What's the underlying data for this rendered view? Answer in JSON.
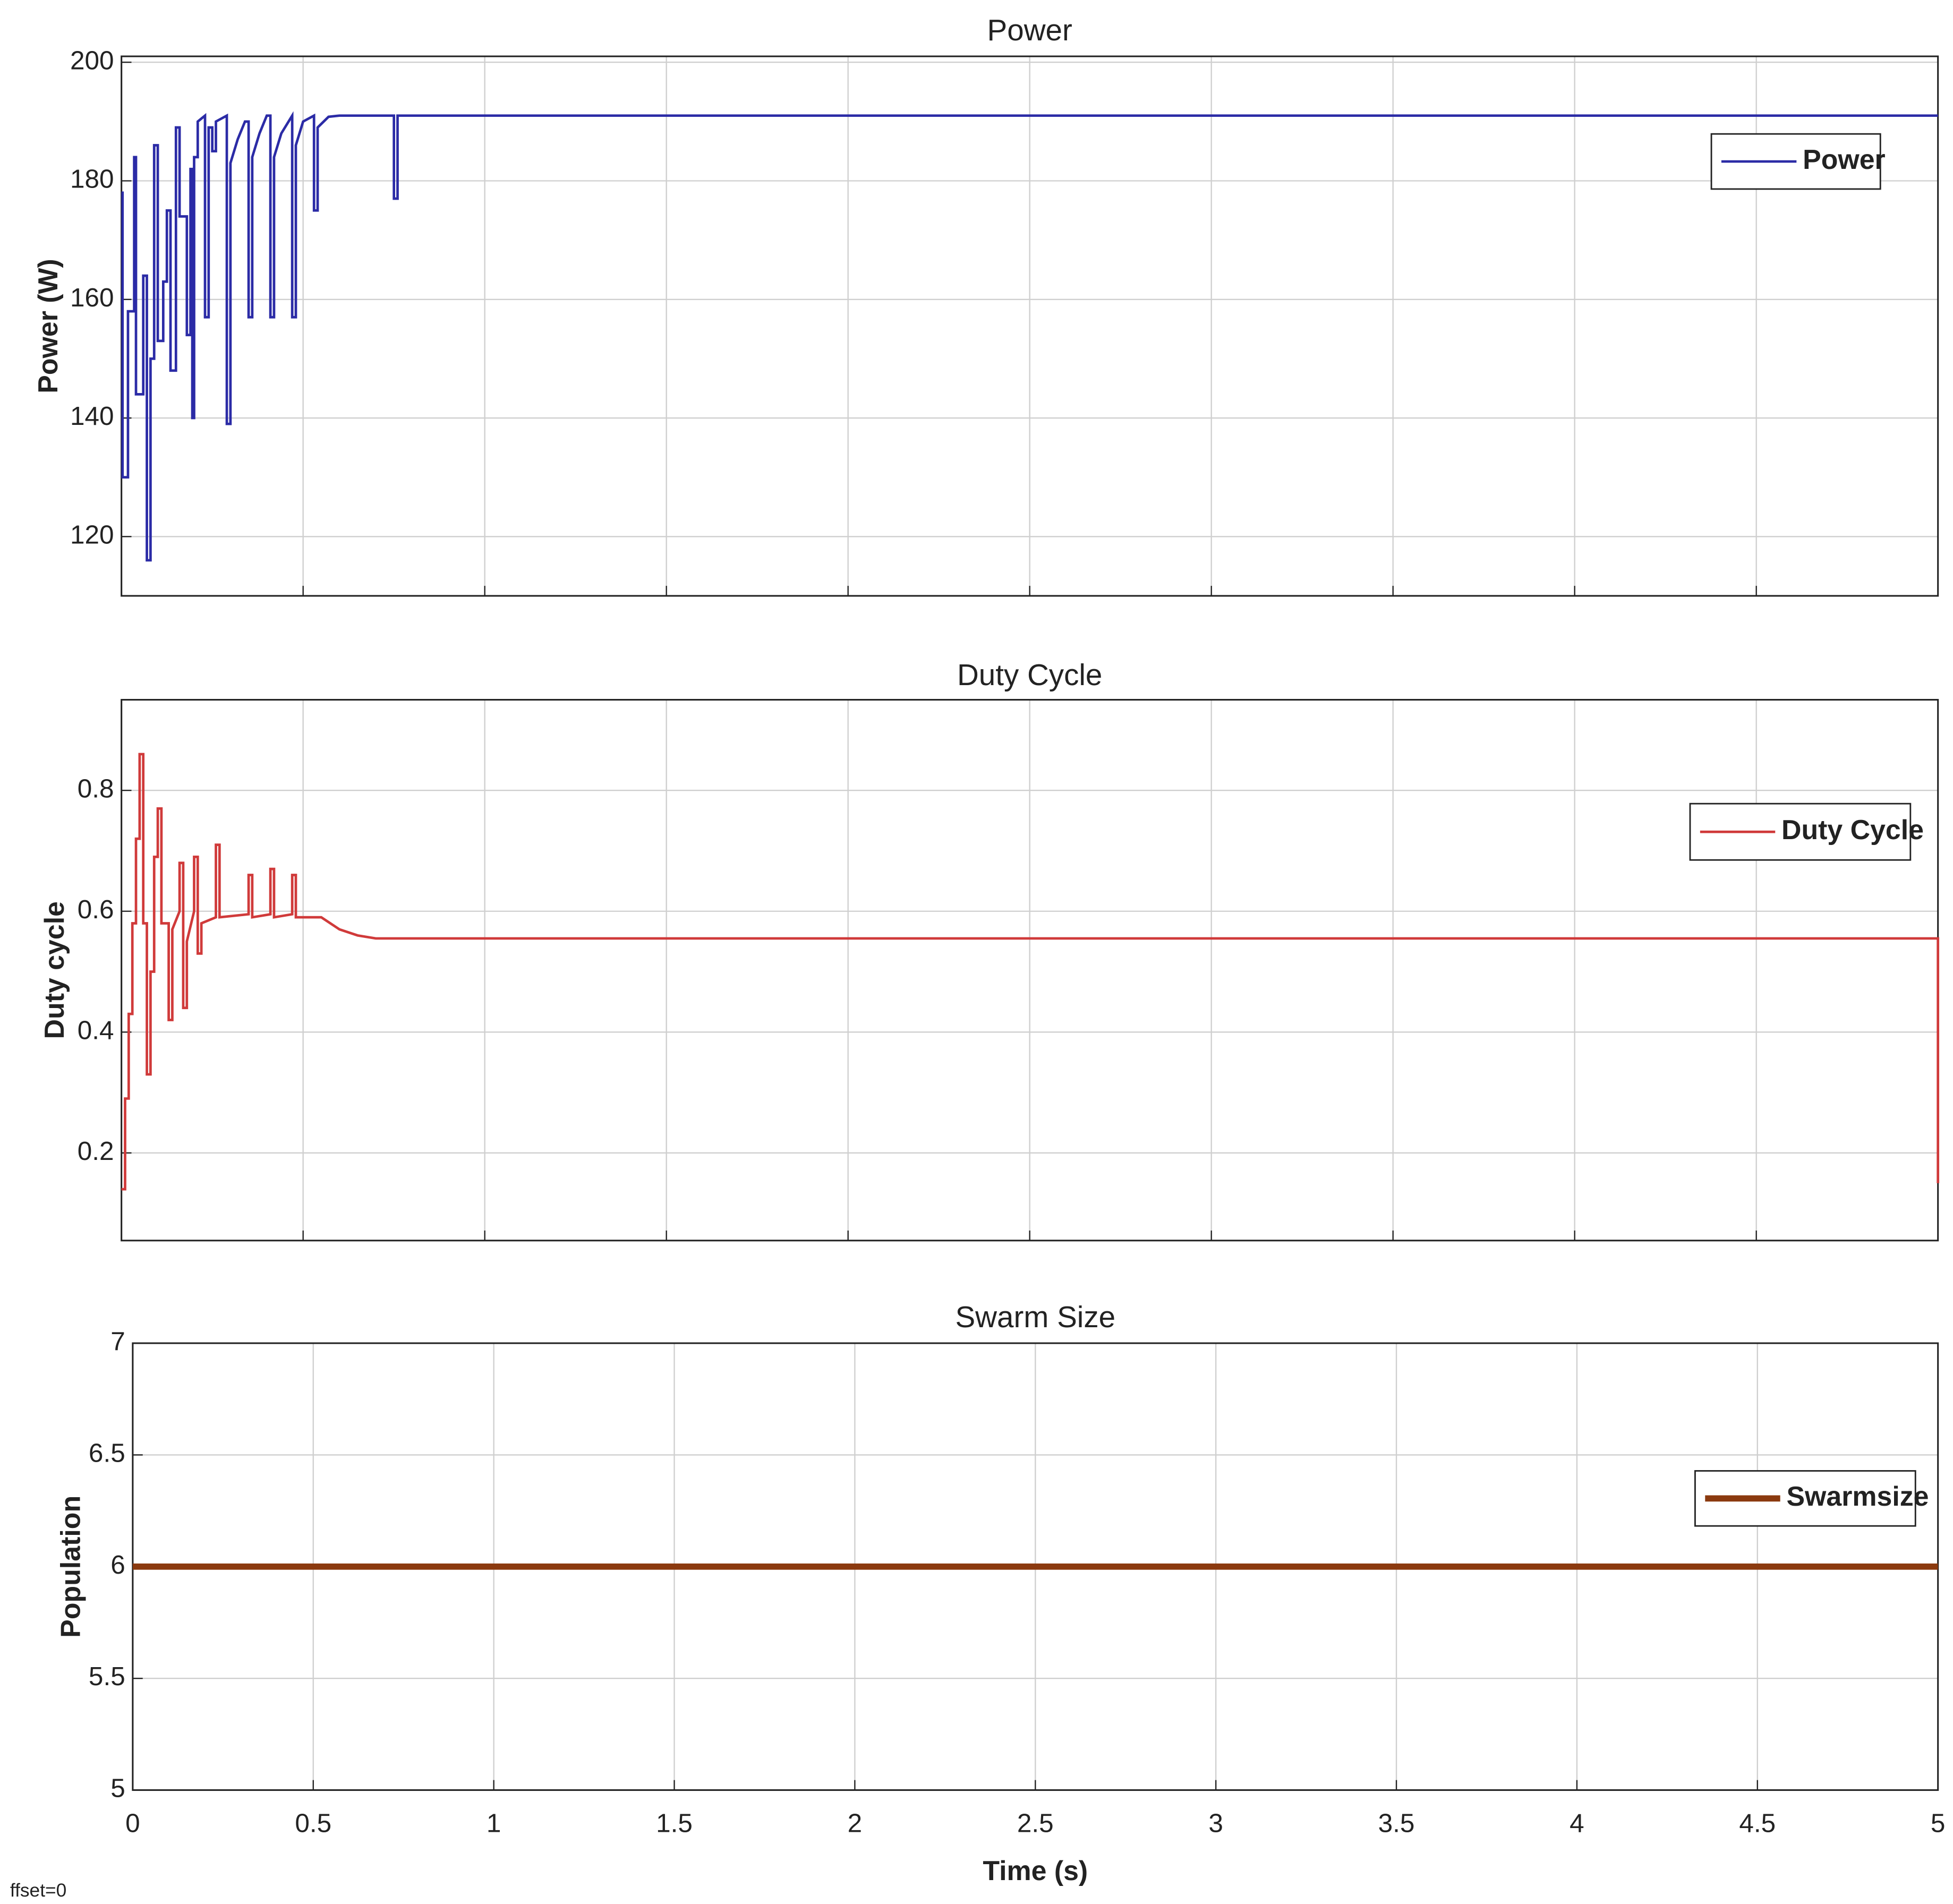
{
  "footnote": "ffset=0",
  "chart_data": [
    {
      "type": "line",
      "title": "Power",
      "ylabel": "Power (W)",
      "xlim": [
        0,
        5
      ],
      "xticks": [
        0,
        0.5,
        1,
        1.5,
        2,
        2.5,
        3,
        3.5,
        4,
        4.5,
        5
      ],
      "show_xtick_labels": false,
      "ylim": [
        110,
        201
      ],
      "yticks": [
        120,
        140,
        160,
        180,
        200
      ],
      "grid": true,
      "legend": "upper right",
      "line_width": 2,
      "x": [
        0,
        0.003,
        0.003,
        0.018,
        0.018,
        0.035,
        0.035,
        0.04,
        0.04,
        0.06,
        0.06,
        0.07,
        0.07,
        0.08,
        0.08,
        0.09,
        0.09,
        0.1,
        0.1,
        0.115,
        0.115,
        0.125,
        0.125,
        0.135,
        0.135,
        0.15,
        0.15,
        0.16,
        0.16,
        0.18,
        0.18,
        0.19,
        0.19,
        0.195,
        0.195,
        0.2,
        0.2,
        0.21,
        0.21,
        0.23,
        0.23,
        0.24,
        0.24,
        0.25,
        0.25,
        0.26,
        0.26,
        0.29,
        0.29,
        0.3,
        0.3,
        0.32,
        0.34,
        0.35,
        0.35,
        0.36,
        0.36,
        0.38,
        0.4,
        0.41,
        0.41,
        0.42,
        0.42,
        0.44,
        0.46,
        0.47,
        0.47,
        0.48,
        0.48,
        0.5,
        0.53,
        0.53,
        0.54,
        0.54,
        0.57,
        0.6,
        0.75,
        0.75,
        0.76,
        0.76,
        5
      ],
      "series": [
        {
          "name": "Power",
          "color": "#2b2ba6",
          "values": [
            178,
            178,
            130,
            130,
            158,
            158,
            184,
            184,
            144,
            144,
            164,
            164,
            116,
            116,
            150,
            150,
            186,
            186,
            153,
            153,
            163,
            163,
            175,
            175,
            148,
            148,
            189,
            189,
            174,
            174,
            154,
            154,
            182,
            182,
            140,
            140,
            184,
            184,
            190,
            191,
            157,
            157,
            189,
            189,
            185,
            185,
            190,
            191,
            139,
            139,
            183,
            187,
            190,
            190,
            157,
            157,
            184,
            188,
            191,
            191,
            157,
            157,
            184,
            188,
            190,
            191,
            157,
            157,
            186,
            190,
            191,
            175,
            175,
            189,
            190.8,
            191,
            191,
            177,
            177,
            191,
            191
          ]
        }
      ]
    },
    {
      "type": "line",
      "title": "Duty Cycle",
      "ylabel": "Duty cycle",
      "xlim": [
        0,
        5
      ],
      "xticks": [
        0,
        0.5,
        1,
        1.5,
        2,
        2.5,
        3,
        3.5,
        4,
        4.5,
        5
      ],
      "show_xtick_labels": false,
      "ylim": [
        0.055,
        0.95
      ],
      "yticks": [
        0.2,
        0.4,
        0.6,
        0.8
      ],
      "grid": true,
      "legend": "upper right",
      "line_width": 2,
      "x": [
        0,
        0.01,
        0.01,
        0.02,
        0.02,
        0.03,
        0.03,
        0.04,
        0.04,
        0.05,
        0.05,
        0.06,
        0.06,
        0.07,
        0.07,
        0.08,
        0.08,
        0.09,
        0.09,
        0.1,
        0.1,
        0.11,
        0.11,
        0.13,
        0.13,
        0.14,
        0.14,
        0.16,
        0.16,
        0.17,
        0.17,
        0.18,
        0.18,
        0.2,
        0.2,
        0.21,
        0.21,
        0.22,
        0.22,
        0.26,
        0.26,
        0.27,
        0.27,
        0.35,
        0.35,
        0.36,
        0.36,
        0.41,
        0.41,
        0.42,
        0.42,
        0.47,
        0.47,
        0.48,
        0.48,
        0.55,
        0.6,
        0.65,
        0.7,
        0.85,
        5,
        5
      ],
      "series": [
        {
          "name": "Duty Cycle",
          "color": "#d03a3a",
          "values": [
            0.14,
            0.14,
            0.29,
            0.29,
            0.43,
            0.43,
            0.58,
            0.58,
            0.72,
            0.72,
            0.86,
            0.86,
            0.58,
            0.58,
            0.33,
            0.33,
            0.5,
            0.5,
            0.69,
            0.69,
            0.77,
            0.77,
            0.58,
            0.58,
            0.42,
            0.42,
            0.57,
            0.6,
            0.68,
            0.68,
            0.44,
            0.44,
            0.55,
            0.6,
            0.69,
            0.69,
            0.53,
            0.53,
            0.58,
            0.59,
            0.71,
            0.71,
            0.59,
            0.595,
            0.66,
            0.66,
            0.59,
            0.595,
            0.67,
            0.67,
            0.59,
            0.595,
            0.66,
            0.66,
            0.59,
            0.59,
            0.57,
            0.56,
            0.555,
            0.555,
            0.555,
            0.15
          ]
        }
      ]
    },
    {
      "type": "line",
      "title": "Swarm Size",
      "ylabel": "Population",
      "xlabel": "Time (s)",
      "xlim": [
        0,
        5
      ],
      "xticks": [
        0,
        0.5,
        1,
        1.5,
        2,
        2.5,
        3,
        3.5,
        4,
        4.5,
        5
      ],
      "show_xtick_labels": true,
      "ylim": [
        5,
        7
      ],
      "yticks": [
        5,
        5.5,
        6,
        6.5,
        7
      ],
      "grid": true,
      "legend": "upper right",
      "line_width": 5,
      "x": [
        0,
        5
      ],
      "series": [
        {
          "name": "Swarmsize",
          "color": "#8b3a0f",
          "values": [
            6,
            6
          ]
        }
      ]
    }
  ]
}
